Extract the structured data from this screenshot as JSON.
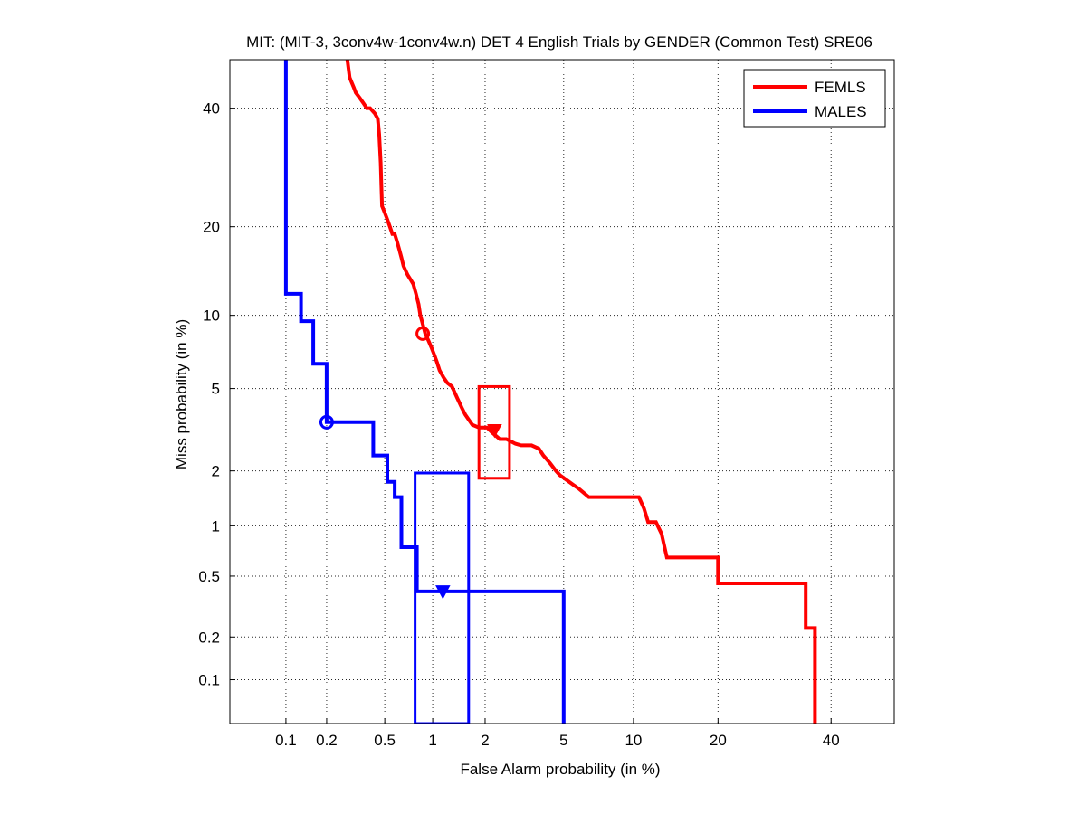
{
  "chart_data": {
    "type": "line",
    "title": "MIT: (MIT-3, 3conv4w-1conv4w.n) DET 4 English Trials by GENDER (Common Test) SRE06",
    "xlabel": "False Alarm probability (in %)",
    "ylabel": "Miss probability (in %)",
    "scale": "normal-deviate (probit) on both axes",
    "xlim": [
      0.036,
      53
    ],
    "ylim": [
      0.047,
      49.5
    ],
    "x_ticks": [
      0.1,
      0.2,
      0.5,
      1,
      2,
      5,
      10,
      20,
      40
    ],
    "x_tick_labels": [
      "0.1",
      "0.2",
      "0.5",
      "1",
      "2",
      "5",
      "10",
      "20",
      "40"
    ],
    "y_ticks": [
      0.1,
      0.2,
      0.5,
      1,
      2,
      5,
      10,
      20,
      40
    ],
    "y_tick_labels": [
      "0.1",
      "0.2",
      "0.5",
      "1",
      "2",
      "5",
      "10",
      "20",
      "40"
    ],
    "grid": true,
    "legend_position": "top-right",
    "series": [
      {
        "name": "FEMLS",
        "color": "#ff0000",
        "points": [
          [
            0.28,
            49.5
          ],
          [
            0.29,
            46
          ],
          [
            0.3,
            45
          ],
          [
            0.31,
            44
          ],
          [
            0.32,
            43
          ],
          [
            0.34,
            42
          ],
          [
            0.36,
            41
          ],
          [
            0.38,
            40
          ],
          [
            0.4,
            40
          ],
          [
            0.43,
            39
          ],
          [
            0.45,
            38
          ],
          [
            0.46,
            35
          ],
          [
            0.47,
            30
          ],
          [
            0.475,
            26
          ],
          [
            0.48,
            23
          ],
          [
            0.5,
            22
          ],
          [
            0.52,
            21
          ],
          [
            0.54,
            20
          ],
          [
            0.56,
            19
          ],
          [
            0.58,
            19
          ],
          [
            0.6,
            18
          ],
          [
            0.62,
            17
          ],
          [
            0.64,
            16
          ],
          [
            0.66,
            15
          ],
          [
            0.7,
            14
          ],
          [
            0.73,
            13.5
          ],
          [
            0.76,
            13
          ],
          [
            0.79,
            12
          ],
          [
            0.82,
            11
          ],
          [
            0.84,
            10
          ],
          [
            0.86,
            9.5
          ],
          [
            0.88,
            9
          ],
          [
            0.9,
            8.5
          ],
          [
            0.94,
            8
          ],
          [
            0.98,
            7.5
          ],
          [
            1.02,
            7
          ],
          [
            1.06,
            6.5
          ],
          [
            1.1,
            6
          ],
          [
            1.16,
            5.6
          ],
          [
            1.22,
            5.3
          ],
          [
            1.3,
            5.1
          ],
          [
            1.4,
            4.5
          ],
          [
            1.48,
            4.1
          ],
          [
            1.55,
            3.8
          ],
          [
            1.62,
            3.6
          ],
          [
            1.7,
            3.4
          ],
          [
            1.85,
            3.3
          ],
          [
            2.05,
            3.3
          ],
          [
            2.2,
            3.1
          ],
          [
            2.4,
            2.9
          ],
          [
            2.6,
            2.9
          ],
          [
            2.9,
            2.75
          ],
          [
            3.1,
            2.7
          ],
          [
            3.5,
            2.7
          ],
          [
            3.8,
            2.6
          ],
          [
            4.0,
            2.4
          ],
          [
            4.3,
            2.2
          ],
          [
            4.6,
            2.0
          ],
          [
            4.8,
            1.9
          ],
          [
            5.3,
            1.75
          ],
          [
            5.9,
            1.6
          ],
          [
            6.5,
            1.45
          ],
          [
            8.0,
            1.45
          ],
          [
            10.5,
            1.45
          ],
          [
            11.0,
            1.25
          ],
          [
            11.4,
            1.05
          ],
          [
            12.2,
            1.05
          ],
          [
            12.8,
            0.9
          ],
          [
            13.4,
            0.65
          ],
          [
            16.0,
            0.65
          ],
          [
            20.0,
            0.65
          ],
          [
            20.0,
            0.45
          ],
          [
            35.0,
            0.45
          ],
          [
            35.0,
            0.23
          ],
          [
            36.8,
            0.23
          ],
          [
            36.8,
            0.047
          ]
        ],
        "act_point": [
          2.25,
          3.2
        ],
        "min_point": [
          0.87,
          8.5
        ],
        "conf_box": {
          "x": [
            1.85,
            2.7
          ],
          "y": [
            1.83,
            5.1
          ]
        }
      },
      {
        "name": "MALES",
        "color": "#0000ff",
        "points": [
          [
            0.1,
            49.5
          ],
          [
            0.1,
            12
          ],
          [
            0.13,
            12
          ],
          [
            0.13,
            9.5
          ],
          [
            0.16,
            9.5
          ],
          [
            0.16,
            6.4
          ],
          [
            0.2,
            6.4
          ],
          [
            0.2,
            3.5
          ],
          [
            0.42,
            3.5
          ],
          [
            0.42,
            2.4
          ],
          [
            0.52,
            2.4
          ],
          [
            0.52,
            1.75
          ],
          [
            0.58,
            1.75
          ],
          [
            0.58,
            1.45
          ],
          [
            0.64,
            1.45
          ],
          [
            0.64,
            0.75
          ],
          [
            0.8,
            0.75
          ],
          [
            0.8,
            0.4
          ],
          [
            5.0,
            0.4
          ],
          [
            5.0,
            0.047
          ]
        ],
        "act_point": [
          1.15,
          0.4
        ],
        "min_point": [
          0.2,
          3.5
        ],
        "conf_box": {
          "x": [
            0.78,
            1.62
          ],
          "y": [
            0.047,
            1.95
          ]
        }
      }
    ]
  }
}
